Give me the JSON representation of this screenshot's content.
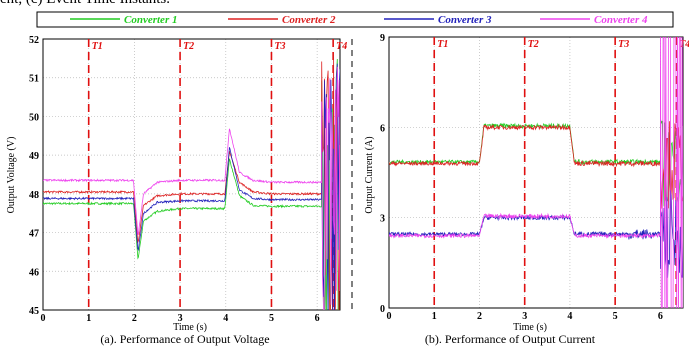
{
  "caption_top_cut": "ent, (c) Event Time Instants.",
  "legend": [
    {
      "name": "Converter 1",
      "color": "#22cc22"
    },
    {
      "name": "Converter 2",
      "color": "#dd2222"
    },
    {
      "name": "Converter 3",
      "color": "#2222bb"
    },
    {
      "name": "Converter 4",
      "color": "#ee44ee"
    }
  ],
  "events": {
    "labels": [
      "T1",
      "T2",
      "T3",
      "T4"
    ],
    "times": [
      1,
      3,
      5,
      6.35
    ],
    "color": "#e01010"
  },
  "chart_data": [
    {
      "type": "line",
      "caption": "(a). Performance of Output Voltage",
      "xlabel": "Time (s)",
      "ylabel": "Output Voltage (V)",
      "xlim": [
        0,
        6.5
      ],
      "ylim": [
        45,
        52
      ],
      "xticks": [
        "0",
        "1",
        "2",
        "3",
        "4",
        "5",
        "6"
      ],
      "yticks": [
        "45",
        "46",
        "47",
        "48",
        "49",
        "50",
        "51",
        "52"
      ],
      "grid": true,
      "series": [
        {
          "name": "Converter 1",
          "x": [
            0,
            1.98,
            2.08,
            2.2,
            2.5,
            3,
            3.98,
            4.08,
            4.3,
            4.6,
            5,
            6,
            6.1
          ],
          "y": [
            47.75,
            47.75,
            46.3,
            47.3,
            47.55,
            47.62,
            47.62,
            48.9,
            47.95,
            47.7,
            47.68,
            47.68,
            47.68
          ]
        },
        {
          "name": "Converter 2",
          "x": [
            0,
            1.98,
            2.08,
            2.2,
            2.5,
            3,
            3.98,
            4.08,
            4.3,
            4.6,
            5,
            6,
            6.1
          ],
          "y": [
            48.05,
            48.05,
            46.7,
            47.7,
            47.95,
            48.0,
            48.0,
            49.1,
            48.3,
            48.05,
            48.0,
            48.0,
            48.0
          ]
        },
        {
          "name": "Converter 3",
          "x": [
            0,
            1.98,
            2.08,
            2.2,
            2.5,
            3,
            3.98,
            4.08,
            4.3,
            4.6,
            5,
            6,
            6.1
          ],
          "y": [
            47.88,
            47.88,
            46.5,
            47.5,
            47.78,
            47.82,
            47.82,
            49.2,
            48.1,
            47.88,
            47.85,
            47.85,
            47.85
          ]
        },
        {
          "name": "Converter 4",
          "x": [
            0,
            1.98,
            2.08,
            2.2,
            2.5,
            3,
            3.98,
            4.08,
            4.3,
            4.6,
            5,
            6,
            6.1
          ],
          "y": [
            48.35,
            48.35,
            46.9,
            48.0,
            48.3,
            48.35,
            48.35,
            49.7,
            48.55,
            48.35,
            48.3,
            48.3,
            48.3
          ]
        }
      ]
    },
    {
      "type": "line",
      "caption": "(b). Performance of Output Current",
      "xlabel": "Time (s)",
      "ylabel": "Output Current (A)",
      "xlim": [
        0,
        6.5
      ],
      "ylim": [
        0,
        9
      ],
      "xticks": [
        "0",
        "1",
        "2",
        "3",
        "4",
        "5",
        "6"
      ],
      "yticks": [
        "0",
        "3",
        "6",
        "9"
      ],
      "grid": true,
      "series": [
        {
          "name": "Converter 1",
          "x": [
            0,
            2,
            2.1,
            4,
            4.1,
            6.0
          ],
          "y": [
            4.85,
            4.85,
            6.05,
            6.05,
            4.85,
            4.85
          ]
        },
        {
          "name": "Converter 2",
          "x": [
            0,
            2,
            2.1,
            4,
            4.1,
            6.0
          ],
          "y": [
            4.8,
            4.8,
            6.0,
            6.0,
            4.8,
            4.8
          ]
        },
        {
          "name": "Converter 3",
          "x": [
            0,
            2,
            2.1,
            4,
            4.1,
            6.0
          ],
          "y": [
            2.45,
            2.45,
            3.0,
            3.0,
            2.45,
            2.45
          ]
        },
        {
          "name": "Converter 4",
          "x": [
            0,
            2,
            2.1,
            4,
            4.1,
            6.0
          ],
          "y": [
            2.4,
            2.4,
            3.05,
            3.05,
            2.4,
            2.4
          ]
        }
      ]
    }
  ]
}
